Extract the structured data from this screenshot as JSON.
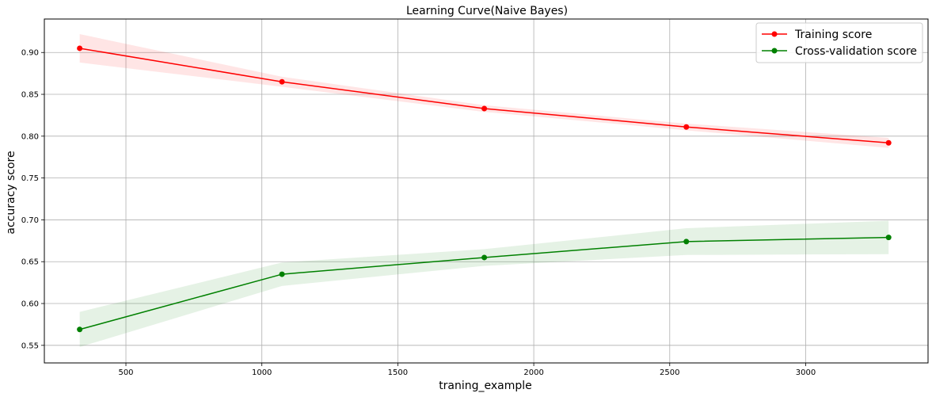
{
  "chart_data": {
    "type": "line",
    "title": "Learning Curve(Naive Bayes)",
    "xlabel": "traning_example",
    "ylabel": "accuracy score",
    "xlim": [
      200,
      3450
    ],
    "ylim": [
      0.529,
      0.94
    ],
    "xticks": [
      500,
      1000,
      1500,
      2000,
      2500,
      3000
    ],
    "yticks": [
      0.55,
      0.6,
      0.65,
      0.7,
      0.75,
      0.8,
      0.85,
      0.9
    ],
    "xtick_labels": [
      "500",
      "1000",
      "1500",
      "2000",
      "2500",
      "3000"
    ],
    "ytick_labels": [
      "0.55",
      "0.60",
      "0.65",
      "0.70",
      "0.75",
      "0.80",
      "0.85",
      "0.90"
    ],
    "grid": true,
    "legend_position": "top-right",
    "x": [
      330,
      1074,
      1818,
      2561,
      3305
    ],
    "series": [
      {
        "name": "Training score",
        "color": "#ff0000",
        "band_color": "#ff0000",
        "values": [
          0.905,
          0.865,
          0.833,
          0.811,
          0.792
        ],
        "lower": [
          0.888,
          0.859,
          0.829,
          0.807,
          0.786
        ],
        "upper": [
          0.922,
          0.871,
          0.837,
          0.815,
          0.798
        ]
      },
      {
        "name": "Cross-validation score",
        "color": "#008000",
        "band_color": "#008000",
        "values": [
          0.569,
          0.635,
          0.655,
          0.674,
          0.679
        ],
        "lower": [
          0.548,
          0.621,
          0.645,
          0.658,
          0.659
        ],
        "upper": [
          0.59,
          0.649,
          0.665,
          0.69,
          0.699
        ]
      }
    ]
  }
}
